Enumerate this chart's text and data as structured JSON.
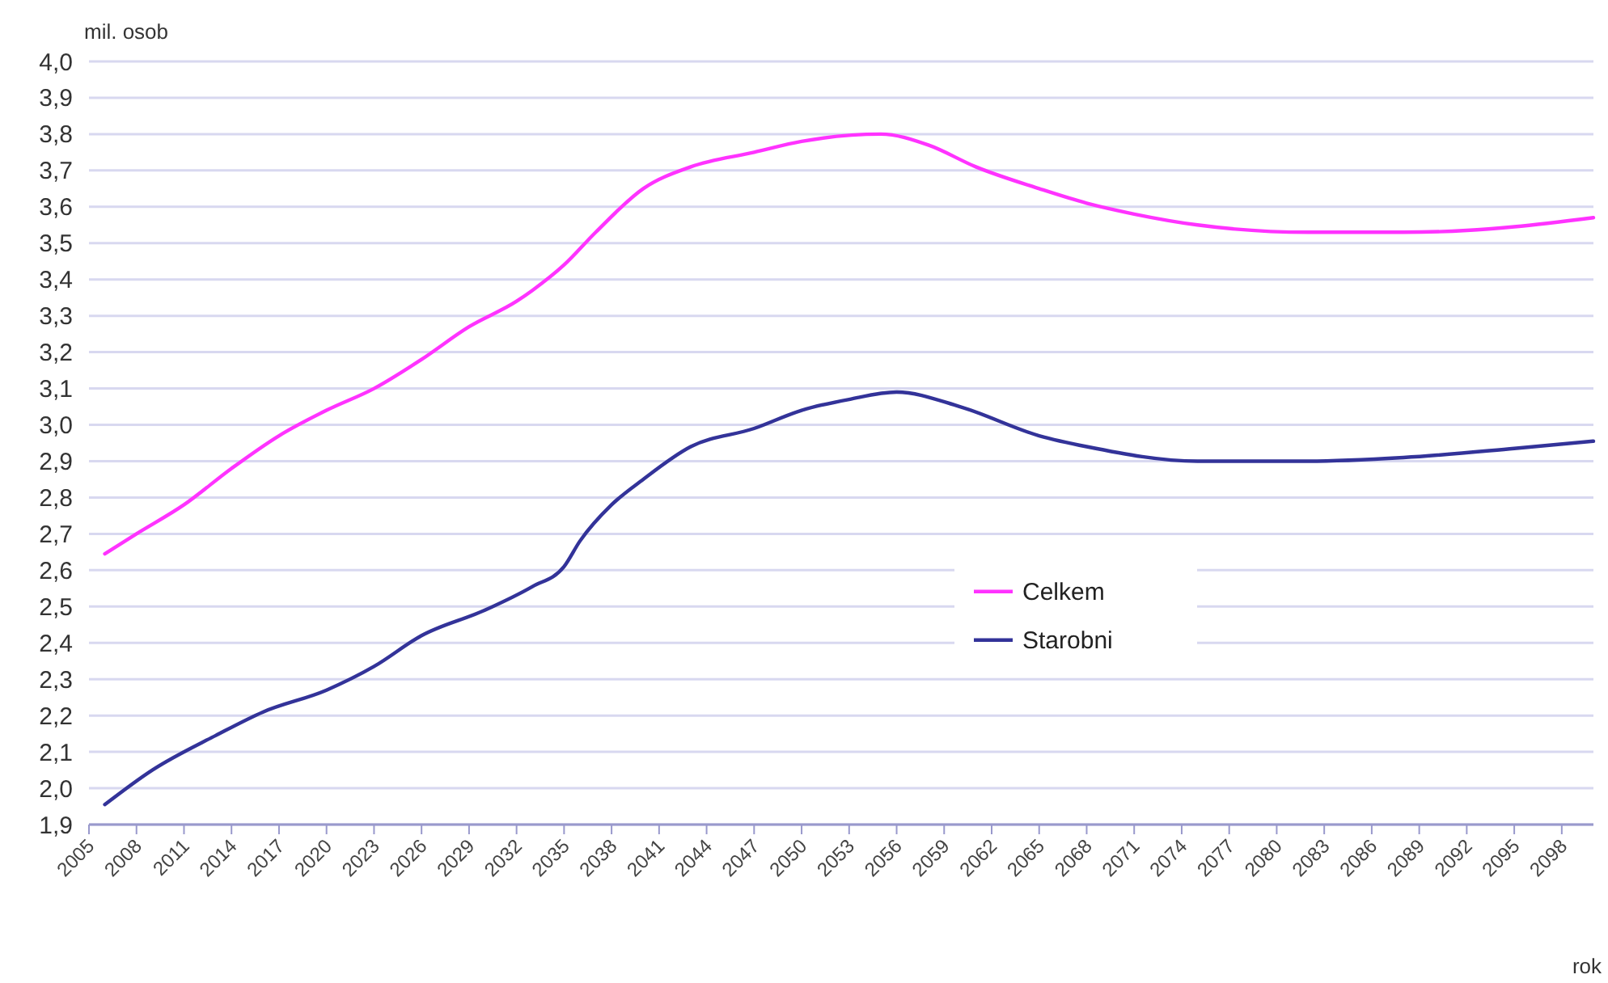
{
  "chart_data": {
    "type": "line",
    "ylabel": "mil. osob",
    "xlabel": "rok",
    "xlim": [
      2005,
      2100
    ],
    "xticks": [
      2005,
      2008,
      2011,
      2014,
      2017,
      2020,
      2023,
      2026,
      2029,
      2032,
      2035,
      2038,
      2041,
      2044,
      2047,
      2050,
      2053,
      2056,
      2059,
      2062,
      2065,
      2068,
      2071,
      2074,
      2077,
      2080,
      2083,
      2086,
      2089,
      2092,
      2095,
      2098
    ],
    "ylim": [
      1.9,
      4.0
    ],
    "yticks": [
      {
        "value": 1.9,
        "label": "1,9"
      },
      {
        "value": 2.0,
        "label": "2,0"
      },
      {
        "value": 2.1,
        "label": "2,1"
      },
      {
        "value": 2.2,
        "label": "2,2"
      },
      {
        "value": 2.3,
        "label": "2,3"
      },
      {
        "value": 2.4,
        "label": "2,4"
      },
      {
        "value": 2.5,
        "label": "2,5"
      },
      {
        "value": 2.6,
        "label": "2,6"
      },
      {
        "value": 2.7,
        "label": "2,7"
      },
      {
        "value": 2.8,
        "label": "2,8"
      },
      {
        "value": 2.9,
        "label": "2,9"
      },
      {
        "value": 3.0,
        "label": "3,0"
      },
      {
        "value": 3.1,
        "label": "3,1"
      },
      {
        "value": 3.2,
        "label": "3,2"
      },
      {
        "value": 3.3,
        "label": "3,3"
      },
      {
        "value": 3.4,
        "label": "3,4"
      },
      {
        "value": 3.5,
        "label": "3,5"
      },
      {
        "value": 3.6,
        "label": "3,6"
      },
      {
        "value": 3.7,
        "label": "3,7"
      },
      {
        "value": 3.8,
        "label": "3,8"
      },
      {
        "value": 3.9,
        "label": "3,9"
      },
      {
        "value": 4.0,
        "label": "4,0"
      }
    ],
    "grid": "y",
    "legend": "bottom",
    "series": [
      {
        "name": "Celkem",
        "color": "#ff33ff",
        "x": [
          2006,
          2008,
          2011,
          2014,
          2017,
          2020,
          2023,
          2026,
          2029,
          2032,
          2033,
          2035,
          2037,
          2040,
          2043,
          2047,
          2050,
          2055,
          2058,
          2061,
          2065,
          2068,
          2071,
          2075,
          2082,
          2088,
          2092,
          2095,
          2100
        ],
        "values": [
          2.645,
          2.7,
          2.78,
          2.88,
          2.97,
          3.04,
          3.1,
          3.18,
          3.27,
          3.34,
          3.37,
          3.44,
          3.53,
          3.65,
          3.71,
          3.75,
          3.78,
          3.8,
          3.77,
          3.71,
          3.65,
          3.61,
          3.58,
          3.55,
          3.53,
          3.53,
          3.535,
          3.545,
          3.57
        ]
      },
      {
        "name": "Starobni",
        "color": "#333399",
        "x": [
          2006,
          2009,
          2013,
          2016,
          2020,
          2023,
          2026,
          2030,
          2033,
          2035,
          2036,
          2038,
          2040,
          2043,
          2047,
          2050,
          2053,
          2056,
          2060,
          2065,
          2068,
          2075,
          2082,
          2088,
          2095,
          2100
        ],
        "values": [
          1.955,
          2.05,
          2.145,
          2.21,
          2.27,
          2.335,
          2.42,
          2.49,
          2.555,
          2.61,
          2.68,
          2.78,
          2.85,
          2.94,
          2.99,
          3.04,
          3.07,
          3.09,
          3.05,
          2.97,
          2.94,
          2.9,
          2.9,
          2.91,
          2.935,
          2.955
        ]
      }
    ]
  }
}
